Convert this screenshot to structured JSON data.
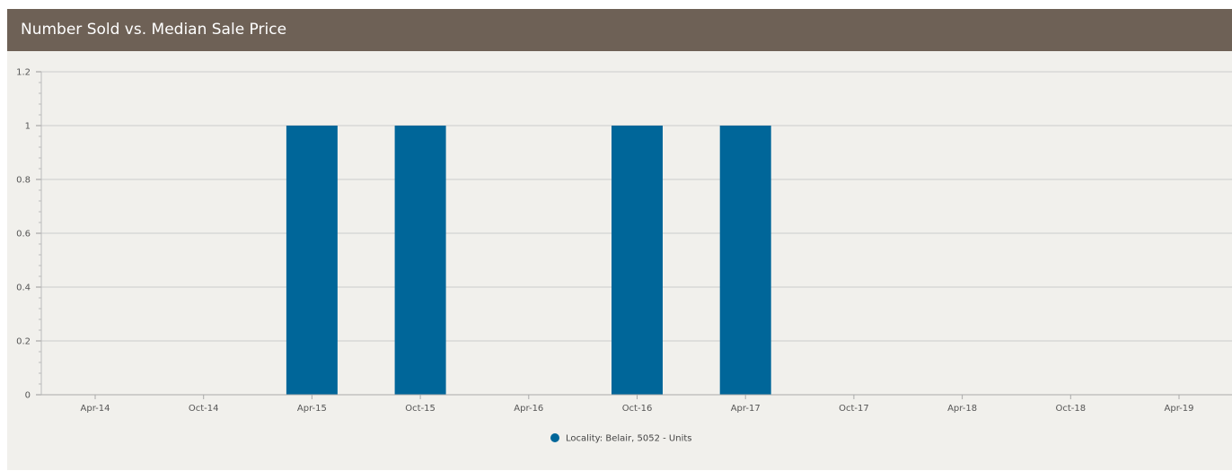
{
  "panel": {
    "title": "Number Sold vs. Median Sale Price"
  },
  "colors": {
    "header_bg": "#6e6156",
    "panel_bg": "#f1f0ec",
    "series": "#006699",
    "grid": "#cccccc"
  },
  "chart_data": {
    "type": "bar",
    "title": "Number Sold vs. Median Sale Price",
    "xlabel": "",
    "ylabel": "",
    "ylim": [
      0,
      1.2
    ],
    "y_ticks": [
      "0",
      "0.2",
      "0.4",
      "0.6",
      "0.8",
      "1",
      "1.2"
    ],
    "categories": [
      "Apr-14",
      "Oct-14",
      "Apr-15",
      "Oct-15",
      "Apr-16",
      "Oct-16",
      "Apr-17",
      "Oct-17",
      "Apr-18",
      "Oct-18",
      "Apr-19"
    ],
    "series": [
      {
        "name": "Locality: Belair, 5052 - Units",
        "color": "#006699",
        "values": [
          0,
          0,
          1,
          1,
          0,
          1,
          1,
          0,
          0,
          0,
          0
        ]
      }
    ],
    "grid": true,
    "legend_position": "bottom-center"
  }
}
